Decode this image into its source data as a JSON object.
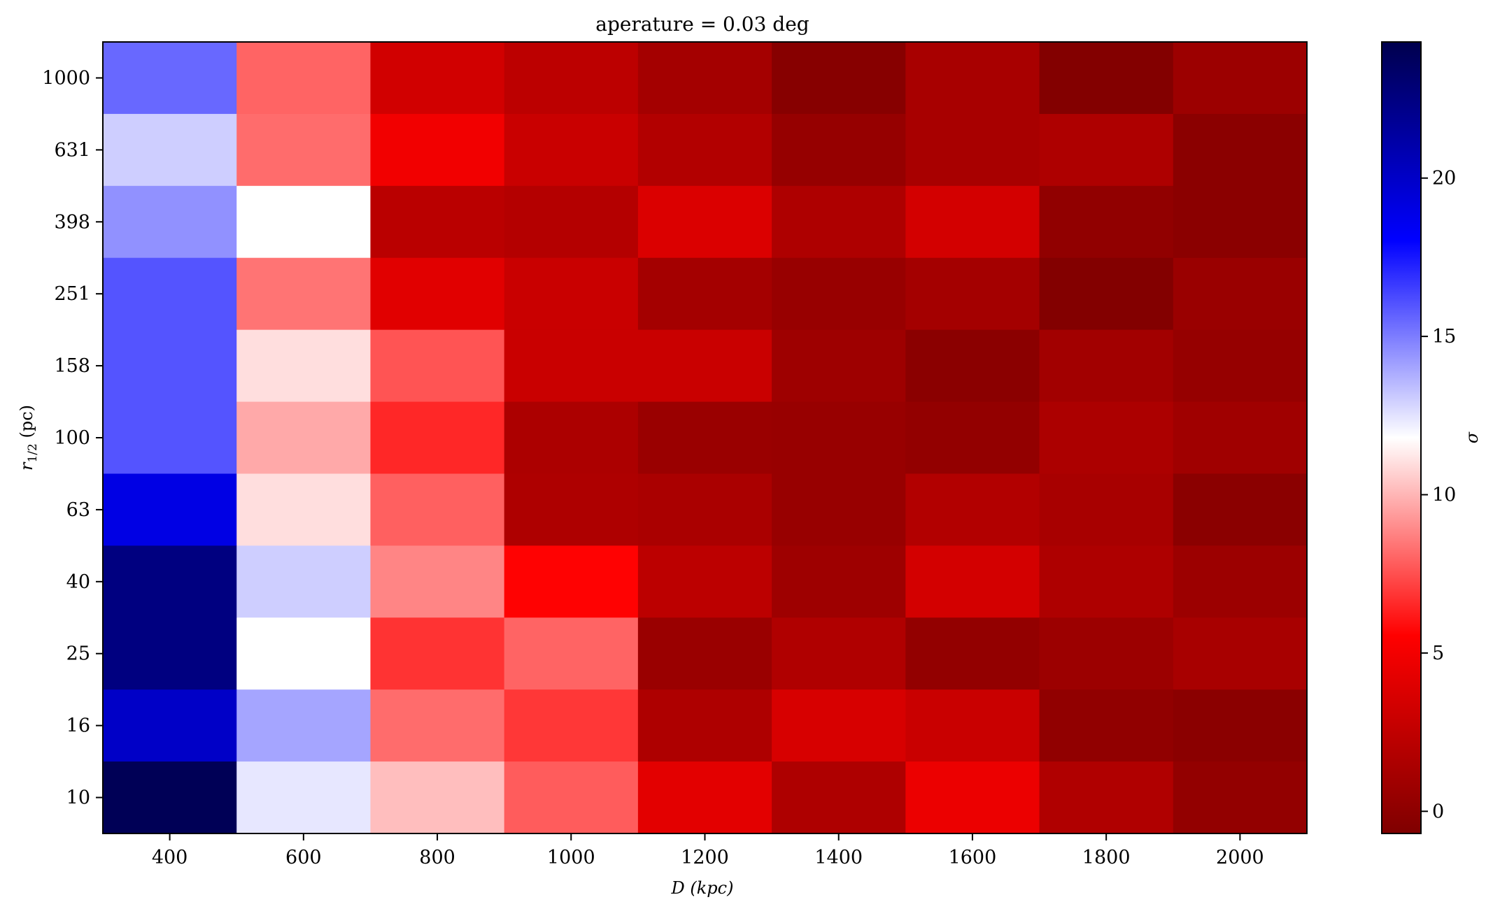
{
  "chart_data": {
    "type": "heatmap",
    "title": "aperature = 0.03 deg",
    "xlabel": "D (kpc)",
    "ylabel": "r1/2 (pc)",
    "ylabel_main": "r",
    "ylabel_sub": "1/2",
    "ylabel_unit": " (pc)",
    "colorbar_label": "σ",
    "x": [
      "400",
      "600",
      "800",
      "1000",
      "1200",
      "1400",
      "1600",
      "1800",
      "2000"
    ],
    "y": [
      "1000",
      "631",
      "398",
      "251",
      "158",
      "100",
      "63",
      "40",
      "25",
      "16",
      "10"
    ],
    "values": [
      [
        15.5,
        8.0,
        3.3,
        2.3,
        1.1,
        -0.3,
        1.3,
        -0.5,
        0.7
      ],
      [
        13.0,
        8.2,
        4.9,
        2.9,
        1.8,
        0.4,
        1.3,
        1.6,
        -0.1
      ],
      [
        14.5,
        11.8,
        2.2,
        1.9,
        3.8,
        1.6,
        3.4,
        0.2,
        -0.1
      ],
      [
        16.0,
        8.4,
        4.1,
        2.9,
        1.1,
        0.5,
        1.1,
        -0.5,
        0.6
      ],
      [
        16.0,
        11.0,
        7.6,
        2.9,
        2.9,
        0.8,
        -0.1,
        1.0,
        0.4
      ],
      [
        16.0,
        9.7,
        6.5,
        1.5,
        0.6,
        0.5,
        0.3,
        1.5,
        0.9
      ],
      [
        19.0,
        11.0,
        7.9,
        1.6,
        1.4,
        0.5,
        1.8,
        1.3,
        -0.1
      ],
      [
        22.5,
        13.0,
        8.8,
        5.6,
        2.3,
        0.8,
        3.4,
        1.6,
        0.7
      ],
      [
        22.5,
        11.8,
        6.8,
        8.0,
        0.6,
        1.7,
        0.3,
        0.7,
        1.3
      ],
      [
        20.0,
        14.0,
        8.2,
        6.9,
        1.6,
        3.6,
        2.9,
        0.2,
        -0.1
      ],
      [
        24.0,
        12.4,
        10.2,
        7.8,
        4.2,
        1.6,
        4.6,
        1.7,
        0.3
      ]
    ],
    "vmin": -0.7,
    "vmax": 24.3,
    "colorbar_ticks": [
      0,
      5,
      10,
      15,
      20
    ],
    "colormap": "seismic_r"
  }
}
